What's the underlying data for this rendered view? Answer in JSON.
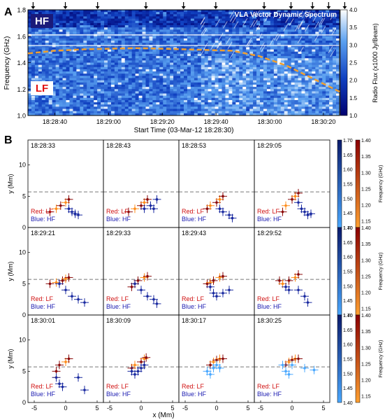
{
  "panel_a": {
    "label": "A",
    "title": "VLA Vector Dynamic Spectrum",
    "band_hf": "HF",
    "band_lf": "LF",
    "ylabel": "Frequency (GHz)",
    "xlabel": "Start Time (03-Mar-12 18:28:30)",
    "colorbar_label": "Radio Flux (x1000 Jy/Beam)",
    "colorbar_ticks": [
      "1.0",
      "1.5",
      "2.0",
      "2.5",
      "3.0",
      "3.5",
      "4.0"
    ],
    "colors": {
      "low": "#0a1d8c",
      "mid": "#2f6ee0",
      "high": "#ffffff",
      "boundary": "#f0a030"
    }
  },
  "panel_b": {
    "label": "B",
    "legend_lf": "Red: LF",
    "legend_hf": "Blue: HF",
    "xlabel": "x (Mm)",
    "ylabel": "y (Mm)",
    "x_ticks": [
      "-5",
      "0",
      "5"
    ],
    "y_ticks": [
      "0",
      "5",
      "10"
    ],
    "hf_colorbar_ticks": [
      "1.70",
      "1.65",
      "1.60",
      "1.55",
      "1.50",
      "1.45",
      "1.40"
    ],
    "lf_colorbar_ticks": [
      "1.40",
      "1.35",
      "1.30",
      "1.25",
      "1.20",
      "1.15"
    ],
    "lf_colorbar_label": "Frequency (GHz)",
    "dashed_line_y": 5.7,
    "colors": {
      "lf_dark": "#8b0000",
      "lf_light": "#ff8c1a",
      "hf_dark": "#0a1a8c",
      "hf_light": "#4aa8ff",
      "legend_lf": "#d01010",
      "legend_hf": "#1a1ab0"
    },
    "timestamps": [
      "18:28:33",
      "18:28:43",
      "18:28:53",
      "18:29:05",
      "18:29:21",
      "18:29:33",
      "18:29:43",
      "18:29:52",
      "18:30:01",
      "18:30:09",
      "18:30:17",
      "18:30:25"
    ]
  },
  "chart_data": [
    {
      "type": "heatmap",
      "title": "VLA Vector Dynamic Spectrum",
      "xlabel": "Start Time (03-Mar-12 18:28:30)",
      "ylabel": "Frequency (GHz)",
      "x_tick_labels": [
        "18:28:40",
        "18:29:00",
        "18:29:20",
        "18:29:40",
        "18:30:00",
        "18:30:20"
      ],
      "x_range_s": [
        0,
        116
      ],
      "y_ticks": [
        "1.0",
        "1.2",
        "1.4",
        "1.6",
        "1.8"
      ],
      "ylim": [
        1.0,
        1.8
      ],
      "colorbar_label": "Radio Flux (x1000 Jy/Beam)",
      "colorbar_range": [
        1.0,
        4.0
      ],
      "lf_hf_boundary": {
        "x": [
          0,
          10,
          20,
          40,
          60,
          76,
          86,
          96,
          106,
          116
        ],
        "y": [
          1.47,
          1.49,
          1.5,
          1.51,
          1.5,
          1.49,
          1.45,
          1.38,
          1.28,
          1.18
        ]
      },
      "arrow_times_s": [
        4,
        16,
        28,
        46,
        60,
        72,
        90,
        100,
        108,
        114,
        120
      ]
    },
    {
      "type": "scatter",
      "xlabel": "x (Mm)",
      "ylabel": "y (Mm)",
      "xlim": [
        -6,
        6
      ],
      "ylim": [
        0,
        14
      ],
      "series": [
        {
          "name": "Red: LF",
          "points_by_frame": [
            [
              [
                -2.5,
                2.5
              ],
              [
                -1.5,
                3
              ],
              [
                -0.8,
                3.5
              ],
              [
                0,
                4
              ],
              [
                0.5,
                4.5
              ]
            ],
            [
              [
                -2,
                2.5
              ],
              [
                -1,
                3
              ],
              [
                0,
                3.5
              ],
              [
                0.5,
                4
              ],
              [
                1,
                4.5
              ]
            ],
            [
              [
                -1.5,
                3
              ],
              [
                -1,
                3.5
              ],
              [
                0,
                4
              ],
              [
                0.5,
                4.5
              ],
              [
                1,
                5
              ]
            ],
            [
              [
                -1.5,
                2.5
              ],
              [
                -1,
                3.5
              ],
              [
                0,
                4.5
              ],
              [
                0.5,
                5
              ],
              [
                1,
                5.5
              ]
            ],
            [
              [
                -2.5,
                5
              ],
              [
                -1.5,
                5.2
              ],
              [
                -0.5,
                5.5
              ],
              [
                0,
                5.8
              ],
              [
                0.5,
                6
              ]
            ],
            [
              [
                -1.5,
                4.5
              ],
              [
                -1,
                5
              ],
              [
                -0.5,
                5.5
              ],
              [
                0.5,
                6
              ],
              [
                1,
                6.2
              ]
            ],
            [
              [
                -1.5,
                5
              ],
              [
                -1,
                5.2
              ],
              [
                -0.5,
                5.5
              ],
              [
                0.5,
                6
              ],
              [
                1,
                6.2
              ]
            ],
            [
              [
                -2,
                5.5
              ],
              [
                -1.5,
                5
              ],
              [
                -0.5,
                5.5
              ],
              [
                0.5,
                6
              ],
              [
                1,
                6.5
              ]
            ],
            [
              [
                -1.5,
                5
              ],
              [
                -1.5,
                4
              ],
              [
                -1,
                6
              ],
              [
                0,
                6.5
              ],
              [
                0.5,
                7
              ]
            ],
            [
              [
                -1.5,
                5.5
              ],
              [
                -1,
                6
              ],
              [
                0,
                6.5
              ],
              [
                0.5,
                7
              ],
              [
                0.8,
                7.2
              ]
            ],
            [
              [
                -1,
                6
              ],
              [
                -0.5,
                6.5
              ],
              [
                0,
                6.8
              ],
              [
                0.5,
                7
              ],
              [
                1,
                7
              ]
            ],
            [
              [
                -1,
                6
              ],
              [
                -0.5,
                6.5
              ],
              [
                0,
                6.8
              ],
              [
                0.5,
                7
              ],
              [
                1,
                7
              ]
            ]
          ]
        },
        {
          "name": "Blue: HF",
          "points_by_frame": [
            [
              [
                0.5,
                3
              ],
              [
                1,
                2.5
              ],
              [
                1.5,
                2.2
              ],
              [
                2,
                2
              ]
            ],
            [
              [
                0.5,
                3
              ],
              [
                1.5,
                3.5
              ],
              [
                2,
                3
              ],
              [
                2.5,
                4.5
              ]
            ],
            [
              [
                0.5,
                3
              ],
              [
                1,
                2.5
              ],
              [
                2,
                2
              ],
              [
                2.5,
                1.5
              ]
            ],
            [
              [
                1,
                4
              ],
              [
                1.5,
                3
              ],
              [
                2,
                2.5
              ],
              [
                2.5,
                2
              ],
              [
                3,
                2.2
              ]
            ],
            [
              [
                -1,
                5
              ],
              [
                0,
                4
              ],
              [
                1,
                3
              ],
              [
                2,
                2.5
              ],
              [
                3,
                2
              ]
            ],
            [
              [
                -1,
                5
              ],
              [
                0,
                4
              ],
              [
                1,
                3
              ],
              [
                2,
                2.5
              ],
              [
                2.5,
                1.8
              ]
            ],
            [
              [
                -1,
                4.5
              ],
              [
                -0.5,
                3.5
              ],
              [
                0,
                3
              ],
              [
                1,
                3.5
              ],
              [
                2,
                4
              ]
            ],
            [
              [
                -1,
                4.5
              ],
              [
                -0.5,
                4
              ],
              [
                1,
                4
              ],
              [
                2,
                3
              ],
              [
                2.5,
                2
              ]
            ],
            [
              [
                -1.5,
                4
              ],
              [
                -1,
                3
              ],
              [
                -0.5,
                2.5
              ],
              [
                2,
                4
              ],
              [
                3,
                2
              ]
            ],
            [
              [
                -1.5,
                5
              ],
              [
                -1,
                4.5
              ],
              [
                -0.5,
                5
              ],
              [
                0,
                5.5
              ],
              [
                0.5,
                6
              ]
            ],
            [
              [
                -1.5,
                5
              ],
              [
                -1,
                4.5
              ],
              [
                -0.5,
                5.5
              ],
              [
                0,
                6
              ],
              [
                0.5,
                5.5
              ]
            ],
            [
              [
                -1.5,
                6
              ],
              [
                -1,
                5
              ],
              [
                -0.5,
                4.5
              ],
              [
                0,
                6
              ],
              [
                2,
                5.5
              ],
              [
                3.5,
                5.2
              ]
            ]
          ]
        }
      ]
    }
  ]
}
